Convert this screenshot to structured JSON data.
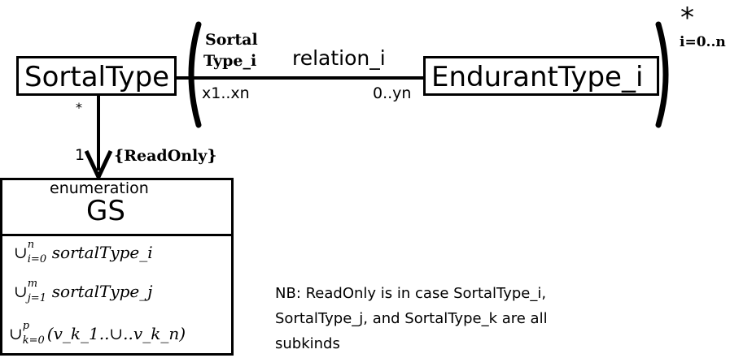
{
  "classes": {
    "sortal_type": "SortalType",
    "endurant_type": "EndurantType_i"
  },
  "association": {
    "role_line1": "Sortal",
    "role_line2": "Type_i",
    "name": "relation_i",
    "mult_left": "x1..xn",
    "mult_right": "0..yn",
    "star": "*",
    "repeat_index": "i=0..n"
  },
  "gs_link": {
    "star": "*",
    "mult": "1",
    "constraint": "{ReadOnly}"
  },
  "enumeration": {
    "stereotype": "enumeration",
    "name": "GS",
    "literals": [
      {
        "union": "∪",
        "sup": "n",
        "sub": "i=0",
        "text": "sortalType_i"
      },
      {
        "union": "∪",
        "sup": "m",
        "sub": "j=1",
        "text": "sortalType_j"
      },
      {
        "union": "∪",
        "sup": "p",
        "sub": "k=0",
        "text": "(v_k_1..∪..v_k_n)"
      }
    ]
  },
  "note": {
    "lines": [
      "NB: ReadOnly is in case SortalType_i,",
      "SortalType_j, and SortalType_k are all",
      "subkinds"
    ]
  }
}
